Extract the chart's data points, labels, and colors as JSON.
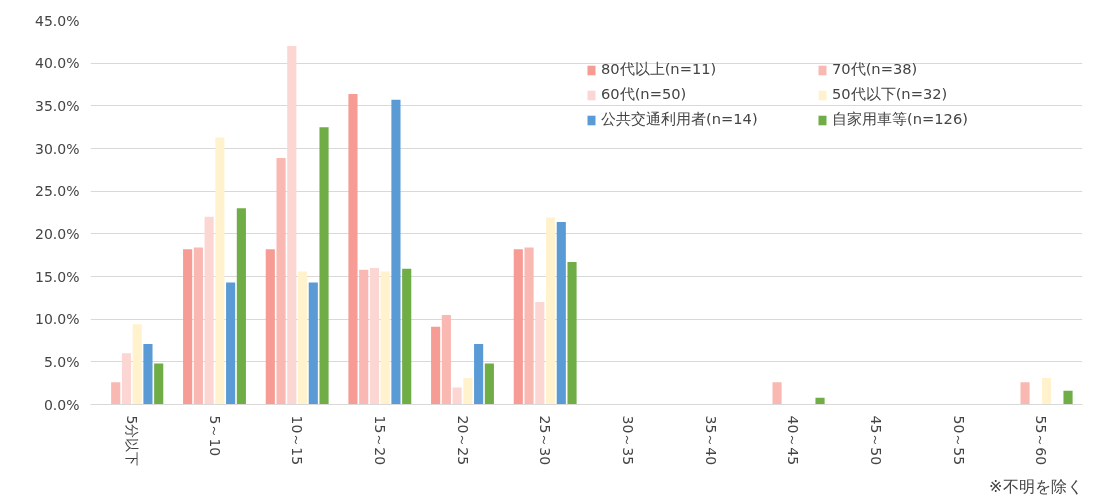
{
  "chart_data": {
    "type": "bar",
    "categories": [
      "5分以下",
      "5～10",
      "10～15",
      "15～20",
      "20～25",
      "25～30",
      "30～35",
      "35～40",
      "40～45",
      "45～50",
      "50～55",
      "55～60"
    ],
    "series": [
      {
        "name": "80代以上(n=11)",
        "color": "#f79b95",
        "values": [
          0,
          18.2,
          18.2,
          36.4,
          9.1,
          18.2,
          0,
          0,
          0,
          0,
          0,
          0
        ]
      },
      {
        "name": "70代(n=38)",
        "color": "#f9b8b2",
        "values": [
          2.6,
          18.4,
          28.9,
          15.8,
          10.5,
          18.4,
          0,
          0,
          2.6,
          0,
          0,
          2.6
        ]
      },
      {
        "name": "60代(n=50)",
        "color": "#fcd6d3",
        "values": [
          6.0,
          22.0,
          42.0,
          16.0,
          2.0,
          12.0,
          0,
          0,
          0,
          0,
          0,
          0
        ]
      },
      {
        "name": "50代以下(n=32)",
        "color": "#fff2cc",
        "values": [
          9.4,
          31.3,
          15.6,
          15.6,
          3.1,
          21.9,
          0,
          0,
          0,
          0,
          0,
          3.1
        ]
      },
      {
        "name": "公共交通利用者(n=14)",
        "color": "#5b9bd5",
        "values": [
          7.1,
          14.3,
          14.3,
          35.7,
          7.1,
          21.4,
          0,
          0,
          0,
          0,
          0,
          0
        ]
      },
      {
        "name": "自家用車等(n=126)",
        "color": "#70ad47",
        "values": [
          4.8,
          23.0,
          32.5,
          15.9,
          4.8,
          16.7,
          0,
          0,
          0.8,
          0,
          0,
          1.6
        ]
      }
    ],
    "ylim": [
      0,
      45
    ],
    "yticks": [
      {
        "value": 0,
        "label": "0.0%"
      },
      {
        "value": 5,
        "label": "5.0%"
      },
      {
        "value": 10,
        "label": "10.0%"
      },
      {
        "value": 15,
        "label": "15.0%"
      },
      {
        "value": 20,
        "label": "20.0%"
      },
      {
        "value": 25,
        "label": "25.0%"
      },
      {
        "value": 30,
        "label": "30.0%"
      },
      {
        "value": 35,
        "label": "35.0%"
      },
      {
        "value": 40,
        "label": "40.0%"
      },
      {
        "value": 45,
        "label": "45.0%"
      }
    ],
    "grid": "y",
    "legend": "top right",
    "annotations": [
      "※不明を除く"
    ]
  }
}
